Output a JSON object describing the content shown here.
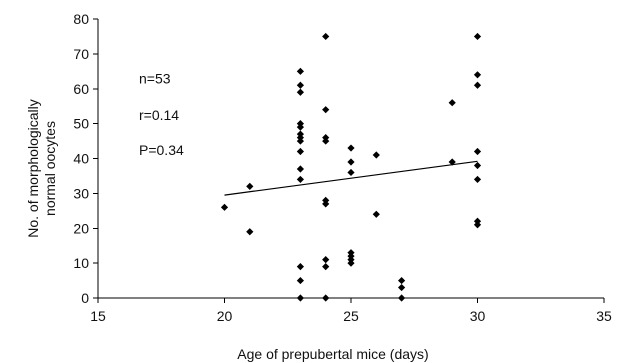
{
  "chart_data": {
    "type": "scatter",
    "title": "",
    "xlabel": "Age of prepubertal mice (days)",
    "ylabel": [
      "No. of morphologically",
      "normal oocytes"
    ],
    "xlim": [
      15,
      35
    ],
    "ylim": [
      0,
      80
    ],
    "xticks": [
      15,
      20,
      25,
      30,
      35
    ],
    "yticks": [
      0,
      10,
      20,
      30,
      40,
      50,
      60,
      70,
      80
    ],
    "grid": false,
    "legend": "none",
    "marker": "diamond",
    "marker_color": "#000000",
    "annotations": [
      "n=53",
      "r=0.14",
      "P=0.34"
    ],
    "series": [
      {
        "points": [
          [
            20,
            26
          ],
          [
            21,
            32
          ],
          [
            21,
            19
          ],
          [
            23,
            65
          ],
          [
            23,
            61
          ],
          [
            23,
            59
          ],
          [
            23,
            50
          ],
          [
            23,
            49
          ],
          [
            23,
            47
          ],
          [
            23,
            46
          ],
          [
            23,
            45
          ],
          [
            23,
            42
          ],
          [
            23,
            37
          ],
          [
            23,
            34
          ],
          [
            23,
            9
          ],
          [
            23,
            5
          ],
          [
            23,
            0
          ],
          [
            24,
            75
          ],
          [
            24,
            54
          ],
          [
            24,
            46
          ],
          [
            24,
            45
          ],
          [
            24,
            28
          ],
          [
            24,
            27
          ],
          [
            24,
            11
          ],
          [
            24,
            9
          ],
          [
            24,
            0
          ],
          [
            25,
            43
          ],
          [
            25,
            39
          ],
          [
            25,
            36
          ],
          [
            25,
            13
          ],
          [
            25,
            12
          ],
          [
            25,
            11
          ],
          [
            25,
            10
          ],
          [
            26,
            41
          ],
          [
            26,
            24
          ],
          [
            27,
            5
          ],
          [
            27,
            3
          ],
          [
            27,
            0
          ],
          [
            29,
            56
          ],
          [
            29,
            39
          ],
          [
            30,
            75
          ],
          [
            30,
            64
          ],
          [
            30,
            61
          ],
          [
            30,
            42
          ],
          [
            30,
            38
          ],
          [
            30,
            34
          ],
          [
            30,
            22
          ],
          [
            30,
            21
          ]
        ]
      }
    ],
    "trendline": {
      "x": [
        20,
        30
      ],
      "y": [
        29.5,
        39.2
      ]
    }
  }
}
